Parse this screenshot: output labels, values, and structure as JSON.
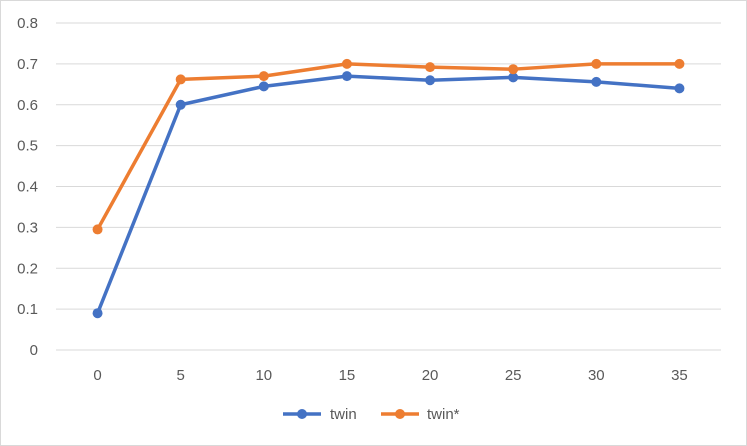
{
  "chart_data": {
    "type": "line",
    "x": [
      0,
      5,
      10,
      15,
      20,
      25,
      30,
      35
    ],
    "series": [
      {
        "name": "twin",
        "values": [
          0.09,
          0.6,
          0.645,
          0.67,
          0.66,
          0.667,
          0.656,
          0.64
        ],
        "color": "#4472C4"
      },
      {
        "name": "twin*",
        "values": [
          0.295,
          0.662,
          0.67,
          0.7,
          0.692,
          0.687,
          0.7,
          0.7
        ],
        "color": "#ED7D31"
      }
    ],
    "yticks": [
      "0",
      "0.1",
      "0.2",
      "0.3",
      "0.4",
      "0.5",
      "0.6",
      "0.7",
      "0.8"
    ],
    "xticks": [
      "0",
      "5",
      "10",
      "15",
      "20",
      "25",
      "30",
      "35"
    ],
    "ylim": [
      0,
      0.8
    ],
    "grid": true,
    "legend_position": "bottom",
    "title": "",
    "xlabel": "",
    "ylabel": ""
  }
}
